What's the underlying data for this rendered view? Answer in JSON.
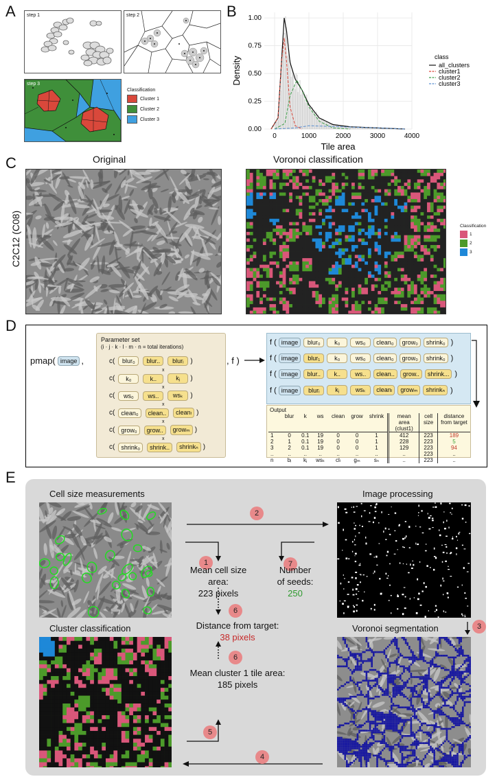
{
  "panels": {
    "A": "A",
    "B": "B",
    "C": "C",
    "D": "D",
    "E": "E"
  },
  "panelA": {
    "step1": "step 1",
    "step2": "step 2",
    "step3": "step 3",
    "legend_title": "Classification",
    "legend": [
      {
        "label": "Cluster 1",
        "color": "#d9483b"
      },
      {
        "label": "Cluster 2",
        "color": "#3f8f3a"
      },
      {
        "label": "Cluster 3",
        "color": "#3fa0e0"
      }
    ]
  },
  "chart_data": {
    "type": "line",
    "xlabel": "Tile area",
    "ylabel": "Density",
    "xlim": [
      -300,
      4000
    ],
    "ylim": [
      0,
      1.05
    ],
    "xticks": [
      "0",
      "1000",
      "2000",
      "3000",
      "4000"
    ],
    "yticks": [
      "0.00",
      "0.25",
      "0.50",
      "0.75",
      "1.00"
    ],
    "legend_title": "class",
    "legend_position": "right",
    "series": [
      {
        "name": "all_clusters",
        "color": "#111111",
        "x": [
          -100,
          100,
          200,
          280,
          350,
          450,
          600,
          800,
          1000,
          1300,
          1700,
          2200,
          3000,
          3800
        ],
        "y": [
          0.0,
          0.1,
          0.6,
          1.0,
          0.88,
          0.6,
          0.45,
          0.35,
          0.22,
          0.1,
          0.04,
          0.02,
          0.01,
          0.0
        ]
      },
      {
        "name": "cluster1",
        "color": "#d9483b",
        "x": [
          -100,
          100,
          200,
          280,
          350,
          450,
          600,
          800
        ],
        "y": [
          0.0,
          0.1,
          0.6,
          0.82,
          0.6,
          0.2,
          0.03,
          0.0
        ]
      },
      {
        "name": "cluster2",
        "color": "#3f9f4a",
        "x": [
          0,
          300,
          450,
          650,
          800,
          1000,
          1300,
          1700,
          2200
        ],
        "y": [
          0.0,
          0.05,
          0.3,
          0.44,
          0.35,
          0.2,
          0.07,
          0.01,
          0.0
        ]
      },
      {
        "name": "cluster3",
        "color": "#5a8fd0",
        "x": [
          0,
          600,
          1000,
          1500,
          2000,
          2500,
          3000,
          3800
        ],
        "y": [
          0.0,
          0.01,
          0.03,
          0.025,
          0.02,
          0.015,
          0.01,
          0.0
        ]
      }
    ]
  },
  "panelC": {
    "title_original": "Original",
    "title_voronoi": "Voronoi classification",
    "row_label": "C2C12 (C08)",
    "legend_title": "Classification",
    "legend": [
      {
        "label": "1",
        "color": "#d9577a"
      },
      {
        "label": "2",
        "color": "#4c9a2a"
      },
      {
        "label": "3",
        "color": "#1e88d8"
      }
    ]
  },
  "panelD": {
    "pmap": "pmap(",
    "image": "image",
    "comma": ",",
    "f_end": ", f )",
    "param_title": "Parameter set",
    "param_sub": "(i · j · k · l · m · n = total iterations)",
    "rows": [
      {
        "prefix": "c(",
        "a": "blur₀",
        "b": "blur..",
        "c": "blurᵢ"
      },
      {
        "prefix": "c(",
        "a": "k₀",
        "b": "k..",
        "c": "kⱼ"
      },
      {
        "prefix": "c(",
        "a": "ws₀",
        "b": "ws..",
        "c": "wsₖ"
      },
      {
        "prefix": "c(",
        "a": "clean₀",
        "b": "clean..",
        "c": "cleanₗ"
      },
      {
        "prefix": "c(",
        "a": "grow₀",
        "b": "grow..",
        "c": "growₘ"
      },
      {
        "prefix": "c(",
        "a": "shrink₀",
        "b": "shrink..",
        "c": "shrinkₙ"
      }
    ],
    "times": "x",
    "calls": [
      [
        "blur₀",
        "k₀",
        "ws₀",
        "clean₀",
        "grow₀",
        "shrink₀"
      ],
      [
        "blur₁",
        "k₀",
        "ws₀",
        "clean₀",
        "grow₀",
        "shrink₀"
      ],
      [
        "blur..",
        "k..",
        "ws..",
        "clean..",
        "grow..",
        "shrink..."
      ],
      [
        "blurᵢ",
        "kⱼ",
        "wsₖ",
        "cleanₗ",
        "growₘ",
        "shrinkₙ"
      ]
    ],
    "f": "f (",
    "close": ")",
    "output_title": "Output",
    "headers": [
      "",
      "blur",
      "k",
      "ws",
      "clean",
      "grow",
      "shrink",
      "mean area (clust1)",
      "cell size",
      "distance from target"
    ],
    "table": [
      [
        "1",
        "0",
        "0.1",
        "19",
        "0",
        "0",
        "1",
        "412",
        "223",
        "189"
      ],
      [
        "2",
        "1",
        "0.1",
        "19",
        "0",
        "0",
        "1",
        "228",
        "223",
        "5"
      ],
      [
        "3",
        "2",
        "0.1",
        "19",
        "0",
        "0",
        "1",
        "129",
        "223",
        "94"
      ],
      [
        "..",
        "..",
        "..",
        "..",
        "..",
        "..",
        "..",
        "..",
        "223",
        ".."
      ],
      [
        "n",
        "bᵢ",
        "kⱼ",
        "wsₖ",
        "clₗ",
        "gₘ",
        "sₙ",
        "..",
        "223",
        ".."
      ]
    ],
    "dist_colors": [
      "#c0392b",
      "#3fa43a",
      "#c0392b"
    ]
  },
  "panelE": {
    "cell_size": "Cell size measurements",
    "image_processing": "Image processing",
    "cluster_class": "Cluster classification",
    "voronoi_seg": "Voronoi segmentation",
    "steps": [
      "1",
      "2",
      "3",
      "4",
      "5",
      "6",
      "6",
      "7"
    ],
    "mean_cell": "Mean cell size\narea:\n223 pixels",
    "mean_cell_l1": "Mean cell size",
    "mean_cell_l2": "area:",
    "mean_cell_l3": "223 pixels",
    "seeds_l1": "Number",
    "seeds_l2": "of seeds:",
    "seeds_val": "250",
    "dist_label": "Distance from target:",
    "dist_val": "38 pixels",
    "tile_l1": "Mean cluster 1 tile area:",
    "tile_l2": "185 pixels",
    "colors": {
      "red": "#c62828",
      "green": "#2e9a2e",
      "circle": "#e8898a"
    }
  }
}
